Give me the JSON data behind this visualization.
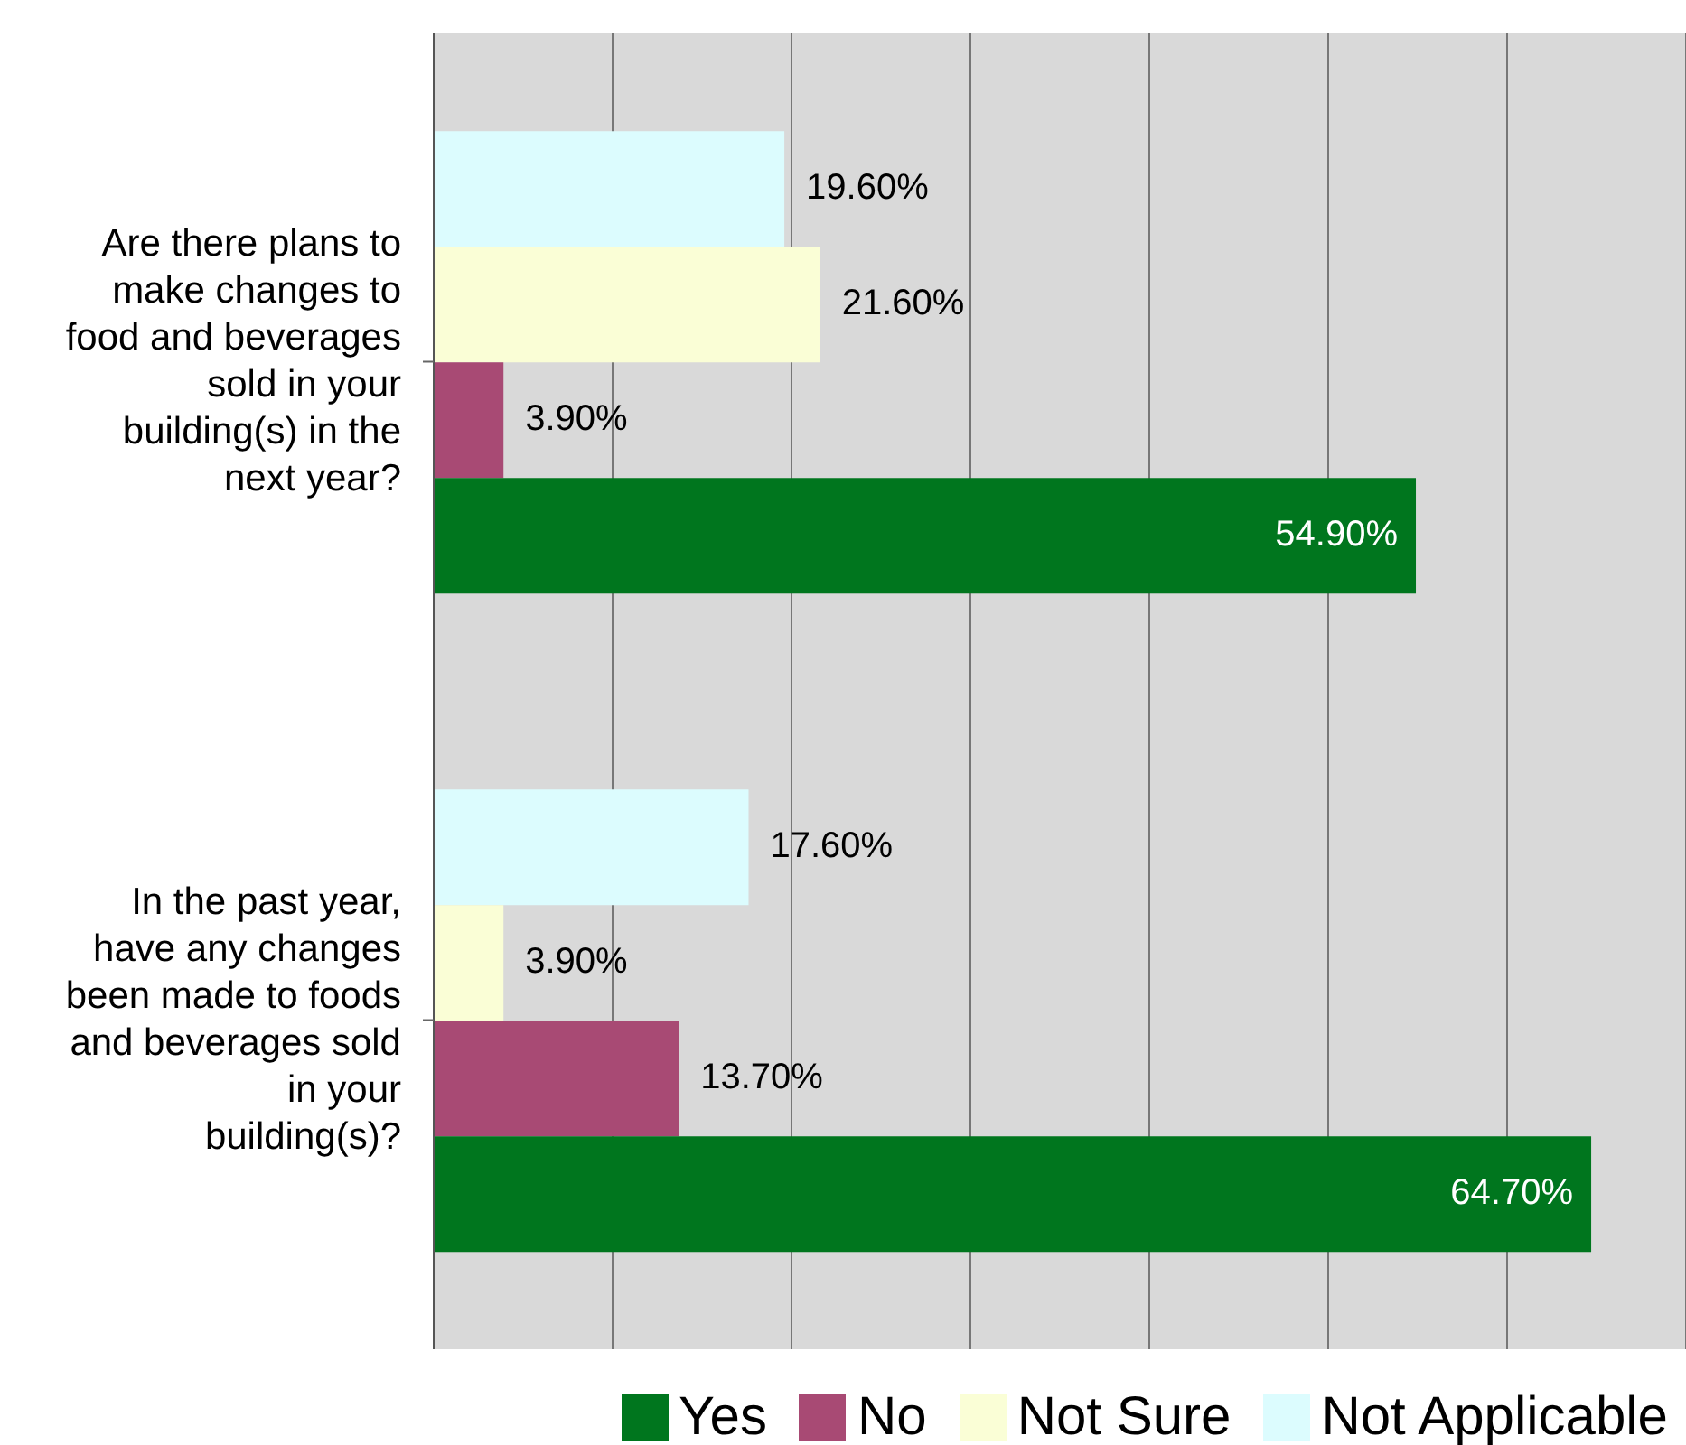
{
  "chart_data": {
    "type": "bar",
    "orientation": "horizontal",
    "categories": [
      "Are there plans to make changes to food and beverages sold in your building(s) in the next year?",
      "In the past year, have any changes been made to foods and beverages sold in your building(s)?"
    ],
    "series": [
      {
        "name": "Yes",
        "color": "#00761e",
        "values": [
          54.9,
          64.7
        ],
        "value_labels": [
          "54.90%",
          "64.70%"
        ]
      },
      {
        "name": "No",
        "color": "#a84a74",
        "values": [
          3.9,
          13.7
        ],
        "value_labels": [
          "3.90%",
          "13.70%"
        ]
      },
      {
        "name": "Not Sure",
        "color": "#fafed6",
        "values": [
          21.6,
          3.9
        ],
        "value_labels": [
          "21.60%",
          "3.90%"
        ]
      },
      {
        "name": "Not Applicable",
        "color": "#dcfcfe",
        "values": [
          19.6,
          17.6
        ],
        "value_labels": [
          "19.60%",
          "17.60%"
        ]
      }
    ],
    "xlim": [
      0,
      70
    ],
    "tick_labels": "y",
    "grid": "x",
    "legend": "bottom"
  }
}
